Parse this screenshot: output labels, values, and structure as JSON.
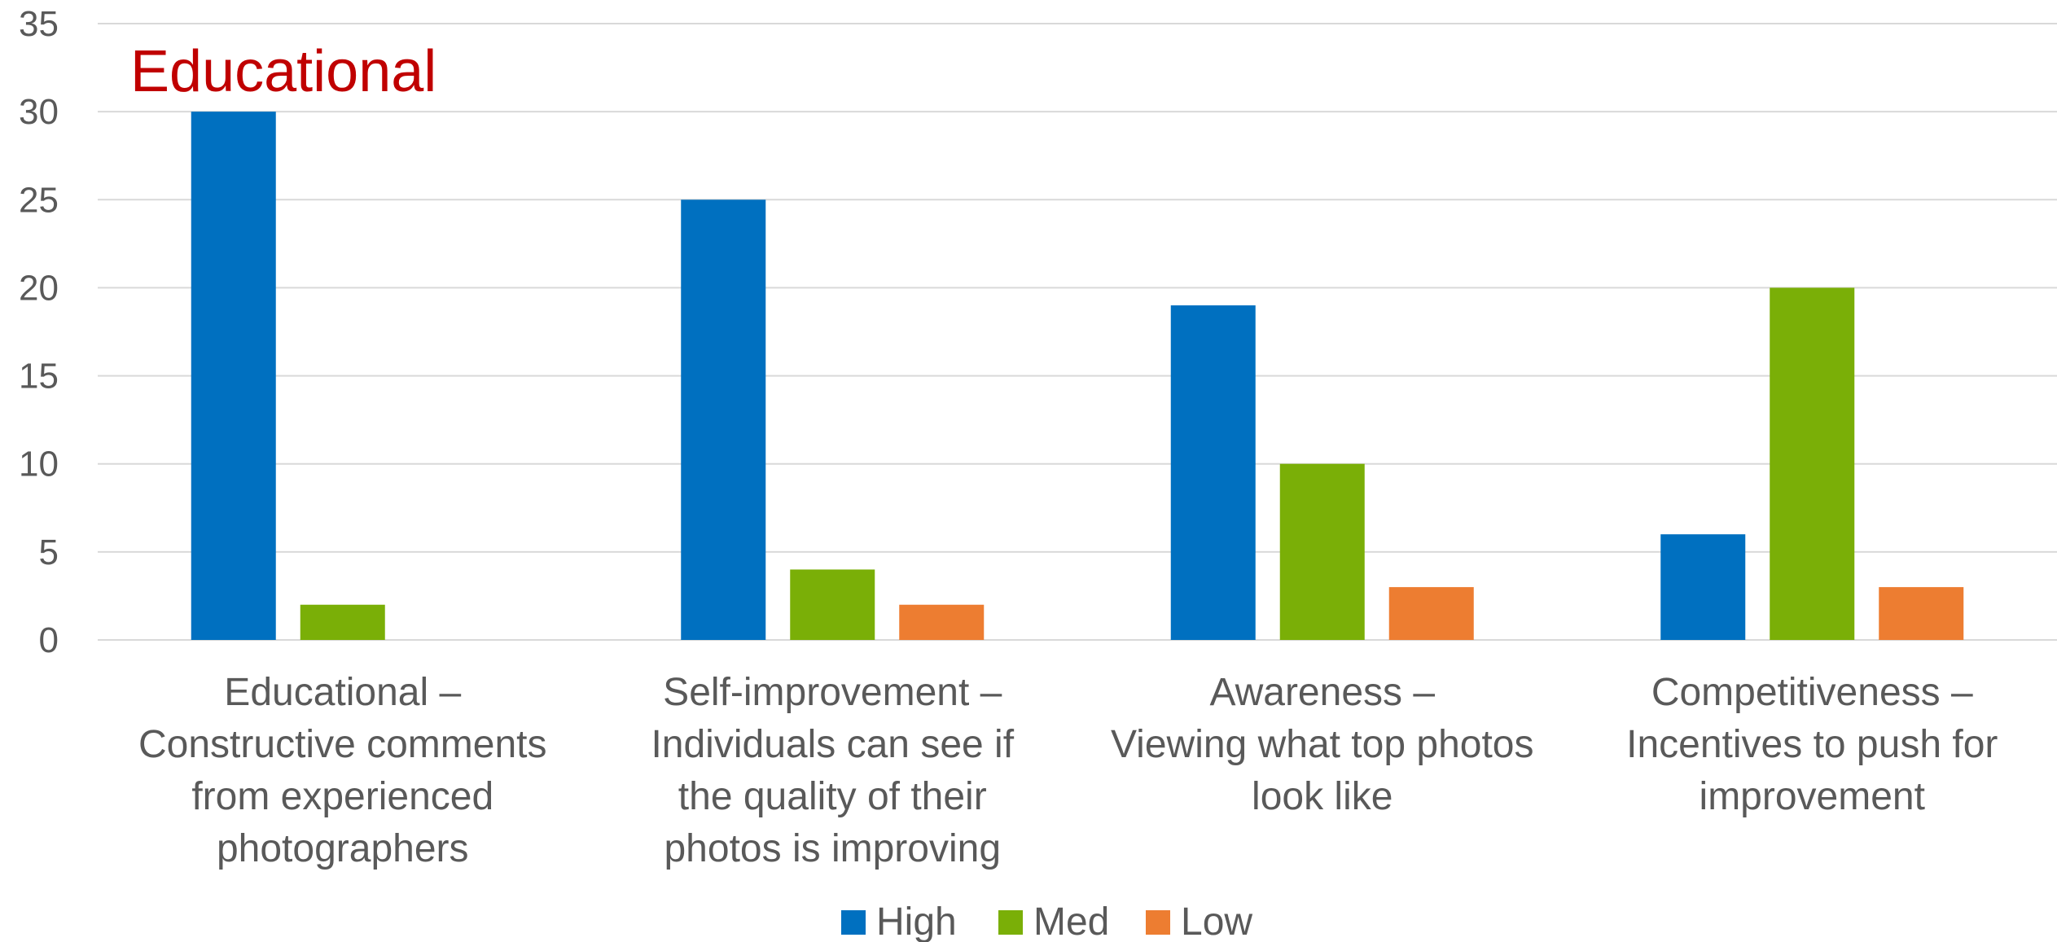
{
  "chart_data": {
    "type": "bar",
    "title": "Educational",
    "xlabel": "",
    "ylabel": "",
    "ylim": [
      0,
      35
    ],
    "yticks": [
      0,
      5,
      10,
      15,
      20,
      25,
      30,
      35
    ],
    "grid": true,
    "legend_position": "bottom",
    "categories": [
      [
        "Educational –",
        "Constructive comments",
        "from experienced",
        "photographers"
      ],
      [
        "Self-improvement –",
        "Individuals can see if",
        "the quality of their",
        "photos is improving"
      ],
      [
        "Awareness –",
        "Viewing what top photos",
        "look like"
      ],
      [
        "Competitiveness –",
        "Incentives to push for",
        "improvement"
      ]
    ],
    "series": [
      {
        "name": "High",
        "color": "#0070c0",
        "values": [
          30,
          25,
          19,
          6
        ]
      },
      {
        "name": "Med",
        "color": "#7aaf07",
        "values": [
          2,
          4,
          10,
          20
        ]
      },
      {
        "name": "Low",
        "color": "#ed7d31",
        "values": [
          0,
          2,
          3,
          3
        ]
      }
    ]
  }
}
